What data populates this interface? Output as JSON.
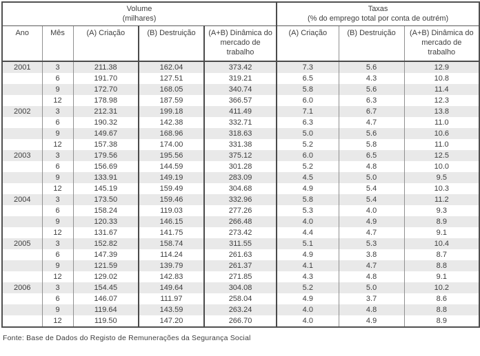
{
  "page": {
    "source_note": "Fonte: Base de Dados do Registo de Remunerações da Segurança Social"
  },
  "table": {
    "sections": [
      {
        "title": "Volume",
        "subtitle": "(milhares)"
      },
      {
        "title": "Taxas",
        "subtitle": "(% do emprego total por conta de outrém)"
      }
    ],
    "columns": [
      "Ano",
      "Mês",
      "(A) Criação",
      "(B) Destruição",
      "(A+B) Dinâmica do mercado de trabalho",
      "(A) Criação",
      "(B) Destruição",
      "(A+B) Dinâmica do mercado de trabalho"
    ],
    "rows": [
      [
        "2001",
        "3",
        "211.38",
        "162.04",
        "373.42",
        "7.3",
        "5.6",
        "12.9"
      ],
      [
        "",
        "6",
        "191.70",
        "127.51",
        "319.21",
        "6.5",
        "4.3",
        "10.8"
      ],
      [
        "",
        "9",
        "172.70",
        "168.05",
        "340.74",
        "5.8",
        "5.6",
        "11.4"
      ],
      [
        "",
        "12",
        "178.98",
        "187.59",
        "366.57",
        "6.0",
        "6.3",
        "12.3"
      ],
      [
        "2002",
        "3",
        "212.31",
        "199.18",
        "411.49",
        "7.1",
        "6.7",
        "13.8"
      ],
      [
        "",
        "6",
        "190.32",
        "142.38",
        "332.71",
        "6.3",
        "4.7",
        "11.0"
      ],
      [
        "",
        "9",
        "149.67",
        "168.96",
        "318.63",
        "5.0",
        "5.6",
        "10.6"
      ],
      [
        "",
        "12",
        "157.38",
        "174.00",
        "331.38",
        "5.2",
        "5.8",
        "11.0"
      ],
      [
        "2003",
        "3",
        "179.56",
        "195.56",
        "375.12",
        "6.0",
        "6.5",
        "12.5"
      ],
      [
        "",
        "6",
        "156.69",
        "144.59",
        "301.28",
        "5.2",
        "4.8",
        "10.0"
      ],
      [
        "",
        "9",
        "133.91",
        "149.19",
        "283.09",
        "4.5",
        "5.0",
        "9.5"
      ],
      [
        "",
        "12",
        "145.19",
        "159.49",
        "304.68",
        "4.9",
        "5.4",
        "10.3"
      ],
      [
        "2004",
        "3",
        "173.50",
        "159.46",
        "332.96",
        "5.8",
        "5.4",
        "11.2"
      ],
      [
        "",
        "6",
        "158.24",
        "119.03",
        "277.26",
        "5.3",
        "4.0",
        "9.3"
      ],
      [
        "",
        "9",
        "120.33",
        "146.15",
        "266.48",
        "4.0",
        "4.9",
        "8.9"
      ],
      [
        "",
        "12",
        "131.67",
        "141.75",
        "273.42",
        "4.4",
        "4.7",
        "9.1"
      ],
      [
        "2005",
        "3",
        "152.82",
        "158.74",
        "311.55",
        "5.1",
        "5.3",
        "10.4"
      ],
      [
        "",
        "6",
        "147.39",
        "114.24",
        "261.63",
        "4.9",
        "3.8",
        "8.7"
      ],
      [
        "",
        "9",
        "121.59",
        "139.79",
        "261.37",
        "4.1",
        "4.7",
        "8.8"
      ],
      [
        "",
        "12",
        "129.02",
        "142.83",
        "271.85",
        "4.3",
        "4.8",
        "9.1"
      ],
      [
        "2006",
        "3",
        "154.45",
        "149.64",
        "304.08",
        "5.2",
        "5.0",
        "10.2"
      ],
      [
        "",
        "6",
        "146.07",
        "111.97",
        "258.04",
        "4.9",
        "3.7",
        "8.6"
      ],
      [
        "",
        "9",
        "119.64",
        "143.59",
        "263.24",
        "4.0",
        "4.8",
        "8.8"
      ],
      [
        "",
        "12",
        "119.50",
        "147.20",
        "266.70",
        "4.0",
        "4.9",
        "8.9"
      ]
    ]
  }
}
